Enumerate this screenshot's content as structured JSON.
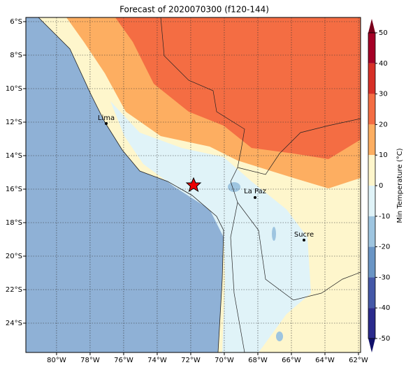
{
  "title": "Forecast of 2020070300 (f120-144)",
  "map": {
    "xlim": [
      -81.83,
      -61.875
    ],
    "ylim": [
      -25.75,
      -5.75
    ],
    "grid": true,
    "ocean_color": "#8fb1d6",
    "xticks": [
      {
        "value": -80,
        "label": "80°W"
      },
      {
        "value": -78,
        "label": "78°W"
      },
      {
        "value": -76,
        "label": "76°W"
      },
      {
        "value": -74,
        "label": "74°W"
      },
      {
        "value": -72,
        "label": "72°W"
      },
      {
        "value": -70,
        "label": "70°W"
      },
      {
        "value": -68,
        "label": "68°W"
      },
      {
        "value": -66,
        "label": "66°W"
      },
      {
        "value": -64,
        "label": "64°W"
      },
      {
        "value": -62,
        "label": "62°W"
      }
    ],
    "yticks": [
      {
        "value": -6,
        "label": "6°S"
      },
      {
        "value": -8,
        "label": "8°S"
      },
      {
        "value": -10,
        "label": "10°S"
      },
      {
        "value": -12,
        "label": "12°S"
      },
      {
        "value": -14,
        "label": "14°S"
      },
      {
        "value": -16,
        "label": "16°S"
      },
      {
        "value": -18,
        "label": "18°S"
      },
      {
        "value": -20,
        "label": "20°S"
      },
      {
        "value": -22,
        "label": "22°S"
      },
      {
        "value": -24,
        "label": "24°S"
      }
    ],
    "cities": [
      "Lima",
      "La Paz",
      "Sucre"
    ]
  },
  "colorbar": {
    "label": "Min Temperature (°C)",
    "ticks": [
      50,
      40,
      30,
      20,
      10,
      0,
      -10,
      -20,
      -30,
      -40,
      -50
    ],
    "colors": [
      "#a50026",
      "#d73027",
      "#f46d43",
      "#fdae61",
      "#fef6cc",
      "#e0f3f8",
      "#9ec5e0",
      "#6a95c5",
      "#4458a8",
      "#2a2a8c"
    ],
    "over_color": "#7a001c",
    "under_color": "#10106a"
  }
}
